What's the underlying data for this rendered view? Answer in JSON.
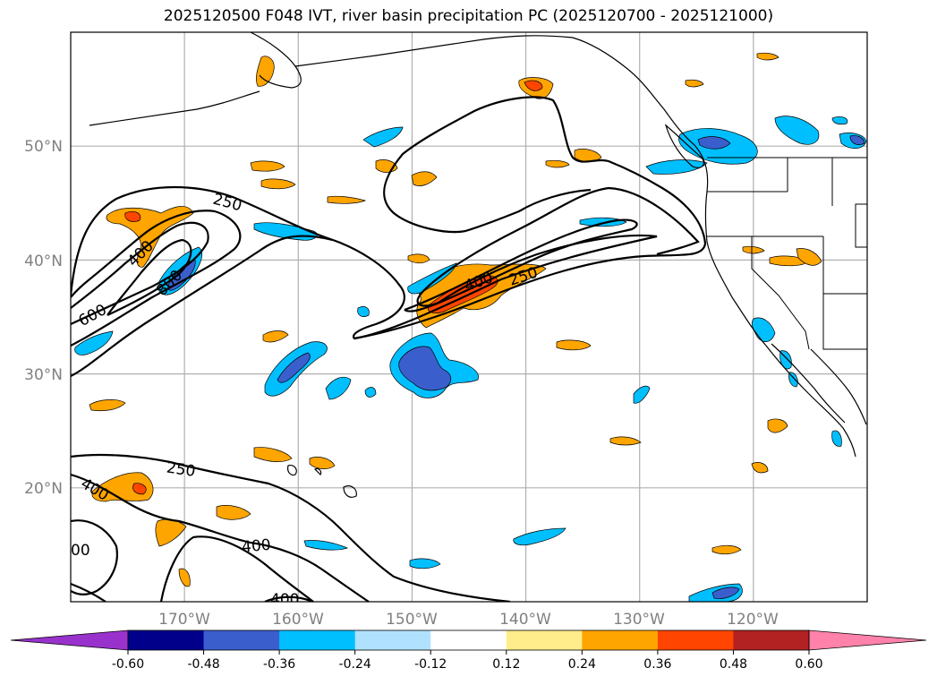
{
  "title": "2025120500 F048 IVT, river basin precipitation PC (2025120700 - 2025121000)",
  "map": {
    "projection": "PlateCarree",
    "lon_range": [
      -180,
      -110
    ],
    "lat_range": [
      10,
      60
    ],
    "grid": true,
    "lat_labels": [
      {
        "value": 50,
        "text": "50°N"
      },
      {
        "value": 40,
        "text": "40°N"
      },
      {
        "value": 30,
        "text": "30°N"
      },
      {
        "value": 20,
        "text": "20°N"
      }
    ],
    "lon_labels": [
      {
        "value": -170,
        "text": "170°W"
      },
      {
        "value": -160,
        "text": "160°W"
      },
      {
        "value": -150,
        "text": "150°W"
      },
      {
        "value": -140,
        "text": "140°W"
      },
      {
        "value": -130,
        "text": "130°W"
      },
      {
        "value": -120,
        "text": "120°W"
      }
    ],
    "ivt_contours": [
      {
        "label": "250",
        "color": "#000000"
      },
      {
        "label": "400",
        "color": "#000000"
      },
      {
        "label": "600",
        "color": "#000000"
      },
      {
        "label": "800",
        "color": "#000000"
      }
    ],
    "contour_labels": [
      "250",
      "400",
      "600",
      "800",
      "400",
      "250",
      "250",
      "400",
      "400",
      "400",
      "00"
    ]
  },
  "colorbar": {
    "ticks": [
      "-0.60",
      "-0.48",
      "-0.36",
      "-0.24",
      "-0.12",
      "0.12",
      "0.24",
      "0.36",
      "0.48",
      "0.60"
    ],
    "colors": [
      "#9932cc",
      "#00008b",
      "#3a5fcd",
      "#00bfff",
      "#b0e2ff",
      "#ffffff",
      "#ffec8b",
      "#ffa500",
      "#ff4500",
      "#b22222",
      "#ff82ab"
    ],
    "extend": "both"
  },
  "chart_data": {
    "type": "map",
    "title": "2025120500 F048 IVT, river basin precipitation PC (2025120700 - 2025121000)",
    "variables": [
      "IVT",
      "river basin precipitation PC"
    ],
    "ivt_contour_levels": [
      250,
      400,
      600,
      800
    ],
    "pc_levels": [
      -0.6,
      -0.48,
      -0.36,
      -0.24,
      -0.12,
      0.12,
      0.24,
      0.36,
      0.48,
      0.6
    ],
    "lon_range": [
      -180,
      -110
    ],
    "lat_range": [
      10,
      60
    ]
  }
}
